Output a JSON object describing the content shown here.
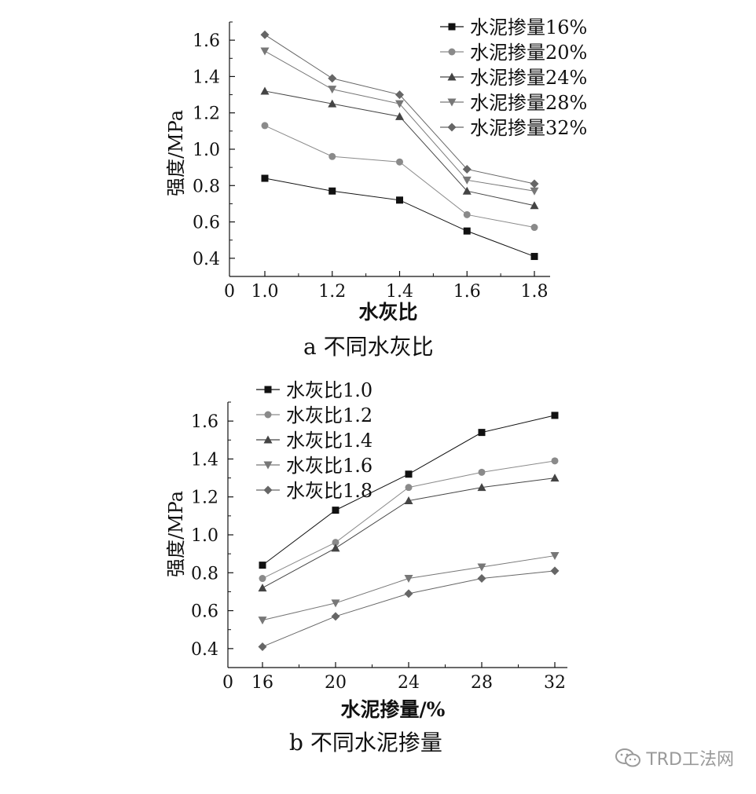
{
  "charts": {
    "a": {
      "caption": "a  不同水灰比",
      "xlabel": "水灰比",
      "ylabel": "强度/MPa",
      "origin_label": "0"
    },
    "b": {
      "caption": "b  不同水泥掺量",
      "xlabel": "水泥掺量/%",
      "ylabel": "强度/MPa",
      "origin_label": "0"
    }
  },
  "watermark": {
    "text": "TRD工法网",
    "icon": "wechat-icon"
  },
  "chart_data": [
    {
      "type": "line",
      "title": "a  不同水灰比",
      "xlabel": "水灰比",
      "ylabel": "强度/MPa",
      "x": [
        1.0,
        1.2,
        1.4,
        1.6,
        1.8
      ],
      "x_ticks": [
        "1.0",
        "1.2",
        "1.4",
        "1.6",
        "1.8"
      ],
      "y_ticks": [
        "0.4",
        "0.6",
        "0.8",
        "1.0",
        "1.2",
        "1.4",
        "1.6"
      ],
      "xlim": [
        0.9,
        1.8
      ],
      "ylim": [
        0.3,
        1.7
      ],
      "legend_position": "top-right",
      "grid": false,
      "series": [
        {
          "name": "水泥掺量16%",
          "marker": "square",
          "color": "#111111",
          "values": [
            0.84,
            0.77,
            0.72,
            0.55,
            0.41
          ]
        },
        {
          "name": "水泥掺量20%",
          "marker": "circle",
          "color": "#8a8a8a",
          "values": [
            1.13,
            0.96,
            0.93,
            0.64,
            0.57
          ]
        },
        {
          "name": "水泥掺量24%",
          "marker": "triangle-up",
          "color": "#444444",
          "values": [
            1.32,
            1.25,
            1.18,
            0.77,
            0.69
          ]
        },
        {
          "name": "水泥掺量28%",
          "marker": "triangle-down",
          "color": "#777777",
          "values": [
            1.54,
            1.33,
            1.25,
            0.83,
            0.77
          ]
        },
        {
          "name": "水泥掺量32%",
          "marker": "diamond",
          "color": "#666666",
          "values": [
            1.63,
            1.39,
            1.3,
            0.89,
            0.81
          ]
        }
      ]
    },
    {
      "type": "line",
      "title": "b  不同水泥掺量",
      "xlabel": "水泥掺量/%",
      "ylabel": "强度/MPa",
      "x": [
        16,
        20,
        24,
        28,
        32
      ],
      "x_ticks": [
        "16",
        "20",
        "24",
        "28",
        "32"
      ],
      "y_ticks": [
        "0.4",
        "0.6",
        "0.8",
        "1.0",
        "1.2",
        "1.4",
        "1.6"
      ],
      "xlim": [
        12,
        32
      ],
      "ylim": [
        0.3,
        1.7
      ],
      "legend_position": "top-left",
      "grid": false,
      "series": [
        {
          "name": "水灰比1.0",
          "marker": "square",
          "color": "#111111",
          "values": [
            0.84,
            1.13,
            1.32,
            1.54,
            1.63
          ]
        },
        {
          "name": "水灰比1.2",
          "marker": "circle",
          "color": "#8a8a8a",
          "values": [
            0.77,
            0.96,
            1.25,
            1.33,
            1.39
          ]
        },
        {
          "name": "水灰比1.4",
          "marker": "triangle-up",
          "color": "#444444",
          "values": [
            0.72,
            0.93,
            1.18,
            1.25,
            1.3
          ]
        },
        {
          "name": "水灰比1.6",
          "marker": "triangle-down",
          "color": "#777777",
          "values": [
            0.55,
            0.64,
            0.77,
            0.83,
            0.89
          ]
        },
        {
          "name": "水灰比1.8",
          "marker": "diamond",
          "color": "#666666",
          "values": [
            0.41,
            0.57,
            0.69,
            0.77,
            0.81
          ]
        }
      ]
    }
  ]
}
